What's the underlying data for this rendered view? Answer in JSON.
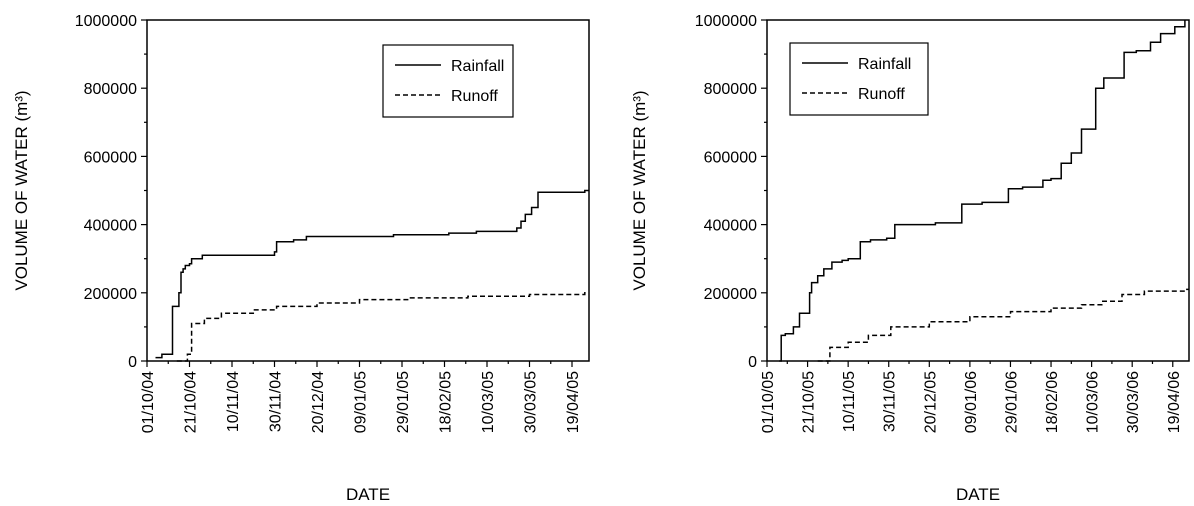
{
  "chart_data": [
    {
      "type": "line",
      "xlabel": "DATE",
      "ylabel": "VOLUME OF WATER (m³)",
      "ylim": [
        0,
        1000000
      ],
      "yticks": [
        "0",
        "200000",
        "400000",
        "600000",
        "800000",
        "1000000"
      ],
      "xlim": [
        "2004-10-01",
        "2005-04-27"
      ],
      "xticks": [
        "01/10/04",
        "21/10/04",
        "10/11/04",
        "30/11/04",
        "20/12/04",
        "09/01/05",
        "29/01/05",
        "18/02/05",
        "10/03/05",
        "30/03/05",
        "19/04/05"
      ],
      "legend": "top-right",
      "series": [
        {
          "name": "Rainfall",
          "style": "solid",
          "x": [
            "2004-10-05",
            "2004-10-08",
            "2004-10-12",
            "2004-10-13",
            "2004-10-15",
            "2004-10-16",
            "2004-10-17",
            "2004-10-18",
            "2004-10-19",
            "2004-10-21",
            "2004-10-22",
            "2004-10-27",
            "2004-11-14",
            "2004-11-30",
            "2004-12-01",
            "2004-12-09",
            "2004-12-15",
            "2005-01-03",
            "2005-01-25",
            "2005-02-20",
            "2005-03-05",
            "2005-03-24",
            "2005-03-26",
            "2005-03-28",
            "2005-03-31",
            "2005-04-03",
            "2005-04-25"
          ],
          "y": [
            10000,
            20000,
            20000,
            160000,
            160000,
            200000,
            260000,
            270000,
            280000,
            285000,
            300000,
            310000,
            310000,
            320000,
            350000,
            355000,
            365000,
            365000,
            370000,
            375000,
            380000,
            390000,
            410000,
            430000,
            450000,
            495000,
            500000
          ]
        },
        {
          "name": "Runoff",
          "style": "dashed",
          "x": [
            "2004-10-15",
            "2004-10-20",
            "2004-10-22",
            "2004-10-28",
            "2004-11-05",
            "2004-11-20",
            "2004-12-01",
            "2004-12-20",
            "2005-01-09",
            "2005-02-01",
            "2005-03-01",
            "2005-03-30",
            "2005-04-25"
          ],
          "y": [
            0,
            20000,
            110000,
            125000,
            140000,
            150000,
            160000,
            170000,
            180000,
            185000,
            190000,
            195000,
            200000
          ]
        }
      ]
    },
    {
      "type": "line",
      "xlabel": "DATE",
      "ylabel": "VOLUME OF WATER (m³)",
      "ylim": [
        0,
        1000000
      ],
      "yticks": [
        "0",
        "200000",
        "400000",
        "600000",
        "800000",
        "1000000"
      ],
      "xlim": [
        "2005-10-01",
        "2006-04-27"
      ],
      "xticks": [
        "01/10/05",
        "21/10/05",
        "10/11/05",
        "30/11/05",
        "20/12/05",
        "09/01/06",
        "29/01/06",
        "18/02/06",
        "10/03/06",
        "30/03/06",
        "19/04/06"
      ],
      "legend": "top-left",
      "series": [
        {
          "name": "Rainfall",
          "style": "solid",
          "x": [
            "2005-10-07",
            "2005-10-08",
            "2005-10-10",
            "2005-10-14",
            "2005-10-17",
            "2005-10-20",
            "2005-10-22",
            "2005-10-23",
            "2005-10-26",
            "2005-10-29",
            "2005-11-02",
            "2005-11-07",
            "2005-11-10",
            "2005-11-16",
            "2005-11-21",
            "2005-11-29",
            "2005-12-03",
            "2005-12-23",
            "2006-01-05",
            "2006-01-15",
            "2006-01-28",
            "2006-02-04",
            "2006-02-14",
            "2006-02-18",
            "2006-02-23",
            "2006-02-28",
            "2006-03-05",
            "2006-03-10",
            "2006-03-12",
            "2006-03-16",
            "2006-03-26",
            "2006-04-01",
            "2006-04-08",
            "2006-04-13",
            "2006-04-20",
            "2006-04-25"
          ],
          "y": [
            0,
            75000,
            80000,
            100000,
            140000,
            140000,
            200000,
            230000,
            250000,
            270000,
            290000,
            295000,
            300000,
            350000,
            355000,
            360000,
            400000,
            405000,
            460000,
            465000,
            505000,
            510000,
            530000,
            535000,
            580000,
            610000,
            680000,
            680000,
            800000,
            830000,
            905000,
            910000,
            935000,
            960000,
            980000,
            1000000
          ]
        },
        {
          "name": "Runoff",
          "style": "dashed",
          "x": [
            "2005-10-26",
            "2005-11-01",
            "2005-11-10",
            "2005-11-20",
            "2005-12-01",
            "2005-12-20",
            "2006-01-09",
            "2006-01-29",
            "2006-02-18",
            "2006-03-05",
            "2006-03-15",
            "2006-03-25",
            "2006-04-05",
            "2006-04-25"
          ],
          "y": [
            0,
            40000,
            55000,
            75000,
            100000,
            115000,
            130000,
            145000,
            155000,
            165000,
            175000,
            195000,
            205000,
            210000
          ]
        }
      ]
    }
  ]
}
